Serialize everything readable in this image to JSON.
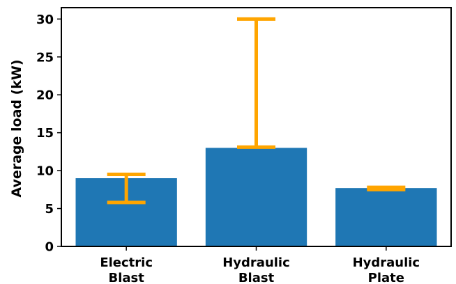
{
  "chart_data": {
    "type": "bar",
    "title": "",
    "xlabel": "",
    "ylabel": "Average load (kW)",
    "categories": [
      [
        "Electric",
        "Blast"
      ],
      [
        "Hydraulic",
        "Blast"
      ],
      [
        "Hydraulic",
        "Plate"
      ]
    ],
    "values": [
      9.0,
      13.0,
      7.7
    ],
    "error_bars": [
      {
        "low": 5.8,
        "high": 9.5
      },
      {
        "low": 13.1,
        "high": 30.0
      },
      {
        "low": 7.5,
        "high": 7.8
      }
    ],
    "ylim": [
      0,
      31.5
    ],
    "yticks": [
      0,
      5,
      10,
      15,
      20,
      25,
      30
    ],
    "grid": false,
    "colors": {
      "bar": "#1f77b4",
      "error_bar": "#ffa500",
      "axis": "#000000"
    }
  }
}
